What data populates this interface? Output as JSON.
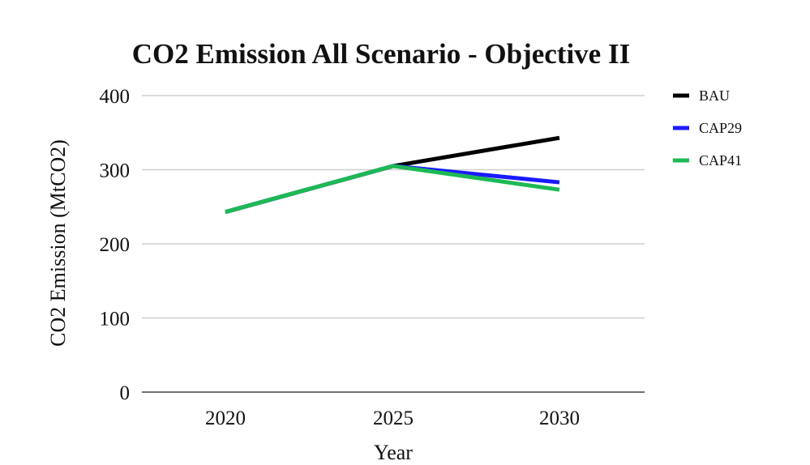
{
  "chart_data": {
    "type": "line",
    "title": "CO2 Emission All Scenario - Objective II",
    "xlabel": "Year",
    "ylabel": "CO2 Emission (MtCO2)",
    "categories": [
      "2020",
      "2025",
      "2030"
    ],
    "ylim": [
      0,
      400
    ],
    "yticks": [
      0,
      100,
      200,
      300,
      400
    ],
    "grid": true,
    "legend_position": "right",
    "series": [
      {
        "name": "BAU",
        "color": "#000000",
        "values": [
          243,
          305,
          343
        ]
      },
      {
        "name": "CAP29",
        "color": "#1a1aff",
        "values": [
          243,
          305,
          283
        ]
      },
      {
        "name": "CAP41",
        "color": "#1db954",
        "values": [
          243,
          305,
          273
        ]
      }
    ]
  }
}
